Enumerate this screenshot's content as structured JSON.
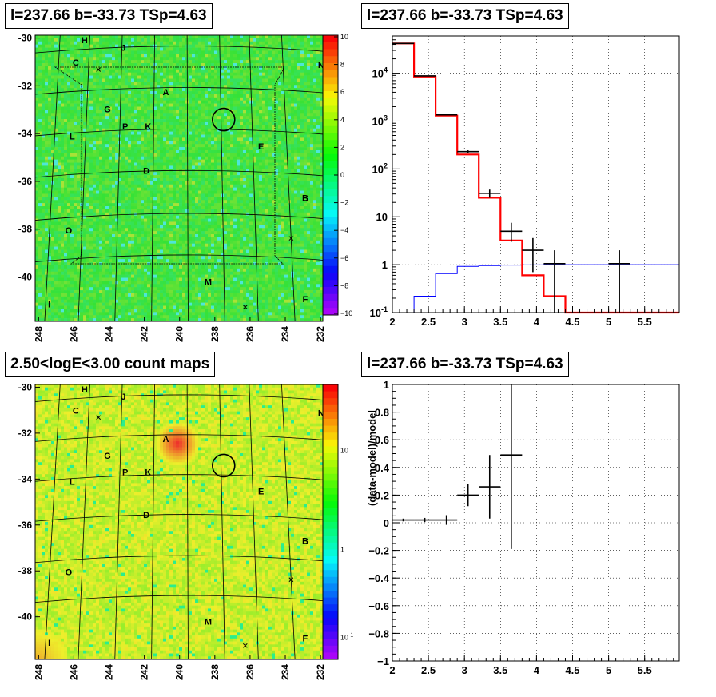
{
  "panels": {
    "top_left_title": "l=237.66 b=-33.73 TSp=4.63",
    "top_right_title": "l=237.66 b=-33.73 TSp=4.63",
    "bottom_left_title": "2.50<logE<3.00 count maps",
    "bottom_right_title": "l=237.66 b=-33.73 TSp=4.63"
  },
  "colors": {
    "map_green": "#4fe046",
    "count_yellow": "#c8e83c",
    "model_line": "#ff0000",
    "bkg_line": "#0000ff",
    "data": "#000000"
  },
  "chart_data": [
    {
      "type": "heatmap",
      "name": "residual-map",
      "xlabel": "",
      "ylabel": "",
      "x_ticks": [
        "248",
        "246",
        "244",
        "242",
        "240",
        "238",
        "236",
        "234",
        "232"
      ],
      "y_ticks": [
        "-30",
        "-32",
        "-34",
        "-36",
        "-38",
        "-40"
      ],
      "xlim": [
        248.3,
        232.0
      ],
      "ylim": [
        -41.5,
        -29.9
      ],
      "colorbar": {
        "min": -10,
        "max": 10,
        "ticks": [
          "10",
          "8",
          "6",
          "4",
          "2",
          "0",
          "−2",
          "−4",
          "−6",
          "−8",
          "−10"
        ]
      },
      "source_labels": [
        {
          "t": "H",
          "l": 245.5,
          "b": -30.1
        },
        {
          "t": "J",
          "l": 243.3,
          "b": -30.4
        },
        {
          "t": "C",
          "l": 246.0,
          "b": -31.0
        },
        {
          "t": "N",
          "l": 232.1,
          "b": -31.1
        },
        {
          "t": "A",
          "l": 240.9,
          "b": -32.2
        },
        {
          "t": "G",
          "l": 244.2,
          "b": -32.9
        },
        {
          "t": "P",
          "l": 243.2,
          "b": -33.6
        },
        {
          "t": "K",
          "l": 241.9,
          "b": -33.6
        },
        {
          "t": "L",
          "l": 246.2,
          "b": -34.0
        },
        {
          "t": "E",
          "l": 235.5,
          "b": -34.4
        },
        {
          "t": "D",
          "l": 242.0,
          "b": -35.4
        },
        {
          "t": "B",
          "l": 233.0,
          "b": -36.5
        },
        {
          "t": "O",
          "l": 246.4,
          "b": -37.8
        },
        {
          "t": "M",
          "l": 238.5,
          "b": -39.9
        },
        {
          "t": "F",
          "l": 233.0,
          "b": -40.6
        },
        {
          "t": "I",
          "l": 247.5,
          "b": -40.8
        }
      ],
      "roi_center": {
        "l": 237.66,
        "b": -33.73
      }
    },
    {
      "type": "line",
      "name": "spectrum",
      "xlabel": "",
      "ylabel": "",
      "xlim": [
        2,
        5.98
      ],
      "ylim_log": [
        0.1,
        60000
      ],
      "x_ticks": [
        "2",
        "2.5",
        "3",
        "3.5",
        "4",
        "4.5",
        "5",
        "5.5"
      ],
      "y_ticks": [
        "10^{-1}",
        "1",
        "10",
        "10^{2}",
        "10^{3}",
        "10^{4}"
      ],
      "bin_edges": [
        2.0,
        2.3,
        2.6,
        2.9,
        3.2,
        3.5,
        3.8,
        4.1,
        4.4,
        4.7,
        5.0,
        5.3,
        5.6,
        5.98
      ],
      "series": [
        {
          "values": [
            42000,
            8500,
            1300,
            200,
            25,
            3.2,
            0.6,
            0.22,
            0.1,
            0.1,
            0.1,
            0.1,
            0.1
          ]
        },
        {
          "values": [
            0.05,
            0.22,
            0.65,
            0.92,
            0.96,
            0.98,
            0.99,
            1.0,
            1.0,
            1.0,
            1.0,
            1.0,
            1.0
          ]
        }
      ],
      "data_points": [
        {
          "x": 2.15,
          "y": 42000,
          "xe": 0.15,
          "lo": 41800,
          "hi": 42200
        },
        {
          "x": 2.45,
          "y": 8800,
          "xe": 0.15,
          "lo": 8700,
          "hi": 8900
        },
        {
          "x": 2.75,
          "y": 1350,
          "xe": 0.15,
          "lo": 1320,
          "hi": 1380
        },
        {
          "x": 3.05,
          "y": 230,
          "xe": 0.15,
          "lo": 215,
          "hi": 245
        },
        {
          "x": 3.35,
          "y": 31,
          "xe": 0.15,
          "lo": 25,
          "hi": 37
        },
        {
          "x": 3.65,
          "y": 5,
          "xe": 0.15,
          "lo": 3,
          "hi": 7.5
        },
        {
          "x": 3.95,
          "y": 2,
          "xe": 0.15,
          "lo": 0.7,
          "hi": 3.6
        },
        {
          "x": 4.25,
          "y": 1.05,
          "xe": 0.15,
          "lo": 0.1,
          "hi": 2.0
        },
        {
          "x": 5.15,
          "y": 1.05,
          "xe": 0.15,
          "lo": 0.1,
          "hi": 2.0
        }
      ]
    },
    {
      "type": "heatmap",
      "name": "count-map",
      "title": "2.50<logE<3.00 count maps",
      "xlabel": "",
      "ylabel": "",
      "x_ticks": [
        "248",
        "246",
        "244",
        "242",
        "240",
        "238",
        "236",
        "234",
        "232"
      ],
      "y_ticks": [
        "-30",
        "-32",
        "-34",
        "-36",
        "-38",
        "-40"
      ],
      "colorbar": {
        "scale": "log",
        "ticks": [
          "10",
          "1",
          "10^{-1}"
        ]
      },
      "source_labels": [
        {
          "t": "H",
          "l": 245.5,
          "b": -30.1
        },
        {
          "t": "J",
          "l": 243.3,
          "b": -30.4
        },
        {
          "t": "C",
          "l": 246.0,
          "b": -31.0
        },
        {
          "t": "N",
          "l": 232.1,
          "b": -31.1
        },
        {
          "t": "A",
          "l": 240.9,
          "b": -32.2
        },
        {
          "t": "G",
          "l": 244.2,
          "b": -32.9
        },
        {
          "t": "P",
          "l": 243.2,
          "b": -33.6
        },
        {
          "t": "K",
          "l": 241.9,
          "b": -33.6
        },
        {
          "t": "L",
          "l": 246.2,
          "b": -34.0
        },
        {
          "t": "E",
          "l": 235.5,
          "b": -34.4
        },
        {
          "t": "D",
          "l": 242.0,
          "b": -35.4
        },
        {
          "t": "B",
          "l": 233.0,
          "b": -36.5
        },
        {
          "t": "O",
          "l": 246.4,
          "b": -37.8
        },
        {
          "t": "M",
          "l": 238.5,
          "b": -39.9
        },
        {
          "t": "F",
          "l": 233.0,
          "b": -40.6
        },
        {
          "t": "I",
          "l": 247.5,
          "b": -40.8
        }
      ],
      "bright_source": {
        "l": 240.9,
        "b": -32.4
      }
    },
    {
      "type": "scatter",
      "name": "residual-ratio",
      "xlabel": "",
      "ylabel": "(data-model)/model",
      "xlim": [
        2,
        5.98
      ],
      "ylim": [
        -1,
        1
      ],
      "x_ticks": [
        "2",
        "2.5",
        "3",
        "3.5",
        "4",
        "4.5",
        "5",
        "5.5"
      ],
      "y_ticks": [
        "1",
        "0.8",
        "0.6",
        "0.4",
        "0.2",
        "0",
        "−0.2",
        "−0.4",
        "−0.6",
        "−0.8",
        "−1"
      ],
      "points": [
        {
          "x": 2.15,
          "y": 0.02,
          "xe": 0.15,
          "ye": 0.01
        },
        {
          "x": 2.45,
          "y": 0.02,
          "xe": 0.15,
          "ye": 0.015
        },
        {
          "x": 2.75,
          "y": 0.02,
          "xe": 0.15,
          "ye": 0.035
        },
        {
          "x": 3.05,
          "y": 0.2,
          "xe": 0.15,
          "ye": 0.08
        },
        {
          "x": 3.35,
          "y": 0.26,
          "xe": 0.15,
          "ye": 0.23
        },
        {
          "x": 3.65,
          "y": 0.49,
          "xe": 0.15,
          "ye": 0.68
        }
      ]
    }
  ]
}
